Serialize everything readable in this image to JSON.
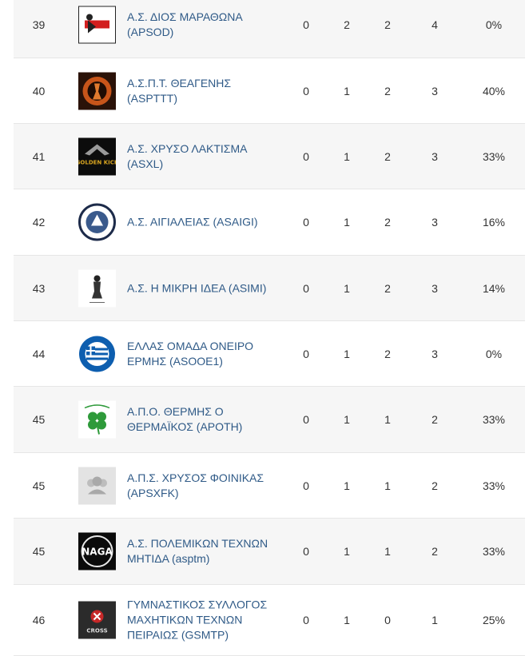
{
  "rows": [
    {
      "rank": "39",
      "name": "Α.Σ. ΔΙΟΣ ΜΑΡΑΘΩΝΑ (APSOD)",
      "v1": "0",
      "v2": "2",
      "v3": "2",
      "v4": "4",
      "pct": "0%",
      "logo": "red-fighter-logo"
    },
    {
      "rank": "40",
      "name": "Α.Σ.Π.Τ. ΘΕΑΓΕΝΗΣ (ASPTTT)",
      "v1": "0",
      "v2": "1",
      "v3": "2",
      "v4": "3",
      "pct": "40%",
      "logo": "orange-fighter-logo"
    },
    {
      "rank": "41",
      "name": "Α.Σ. ΧΡΥΣΟ ΛΑΚΤΙΣΜΑ (ASXL)",
      "v1": "0",
      "v2": "1",
      "v3": "2",
      "v4": "3",
      "pct": "33%",
      "logo": "golden-kick-logo",
      "logo_text": "GOLDEN KICK"
    },
    {
      "rank": "42",
      "name": "Α.Σ. ΑΙΓΙΑΛΕΙΑΣ (ASAIGI)",
      "v1": "0",
      "v2": "1",
      "v3": "2",
      "v4": "3",
      "pct": "16%",
      "logo": "round-emblem-logo"
    },
    {
      "rank": "43",
      "name": "Α.Σ. Η ΜΙΚΡΗ ΙΔΕΑ (ASIMI)",
      "v1": "0",
      "v2": "1",
      "v3": "2",
      "v4": "3",
      "pct": "14%",
      "logo": "warrior-sketch-logo"
    },
    {
      "rank": "44",
      "name": "ΕΛΛΑΣ ΟΜΑΔΑ ΟΝΕΙΡΟ ΕΡΜΗΣ (ASOOE1)",
      "v1": "0",
      "v2": "1",
      "v3": "2",
      "v4": "3",
      "pct": "0%",
      "logo": "greek-flag-logo"
    },
    {
      "rank": "45",
      "name": "Α.Π.Ο. ΘΕΡΜΗΣ Ο ΘΕΡΜΑΪΚΟΣ (APOTH)",
      "v1": "0",
      "v2": "1",
      "v3": "1",
      "v4": "2",
      "pct": "33%",
      "logo": "clover-logo"
    },
    {
      "rank": "45",
      "name": "Α.Π.Σ. ΧΡΥΣΟΣ ΦΟΙΝΙΚΑΣ (APSXFK)",
      "v1": "0",
      "v2": "1",
      "v3": "1",
      "v4": "2",
      "pct": "33%",
      "logo": "placeholder-group-logo"
    },
    {
      "rank": "45",
      "name": "Α.Σ. ΠΟΛΕΜΙΚΩΝ ΤΕΧΝΩΝ ΜΗΤΙΔΑ (asptm)",
      "v1": "0",
      "v2": "1",
      "v3": "1",
      "v4": "2",
      "pct": "33%",
      "logo": "naga-logo",
      "logo_text": "NAGA"
    },
    {
      "rank": "46",
      "name": "ΓΥΜΝΑΣΤΙΚΟΣ ΣΥΛΛΟΓΟΣ ΜΑΧΗΤΙΚΩΝ ΤΕΧΝΩΝ ΠΕΙΡΑΙΩΣ (GSMTP)",
      "v1": "0",
      "v2": "1",
      "v3": "0",
      "v4": "1",
      "pct": "25%",
      "logo": "cross-logo",
      "logo_text": "CROSS"
    }
  ]
}
